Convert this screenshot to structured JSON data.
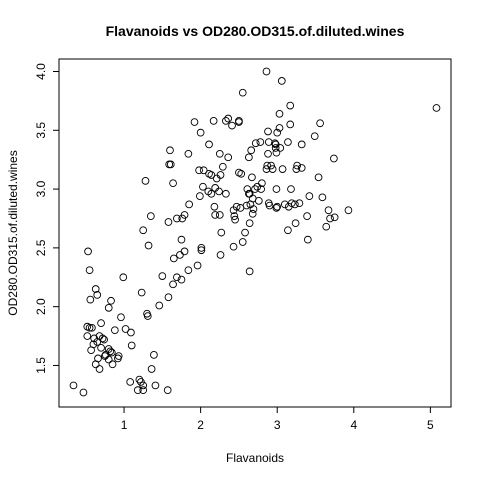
{
  "chart_data": {
    "type": "scatter",
    "title": "Flavanoids vs OD280.OD315.of.diluted.wines",
    "xlabel": "Flavanoids",
    "ylabel": "OD280.OD315.of.diluted.wines",
    "xlim": [
      0.34,
      5.08
    ],
    "ylim": [
      1.27,
      4.0
    ],
    "xticks": [
      1,
      2,
      3,
      4,
      5
    ],
    "xtick_labels": [
      "1",
      "2",
      "3",
      "4",
      "5"
    ],
    "yticks": [
      1.5,
      2.0,
      2.5,
      3.0,
      3.5,
      4.0
    ],
    "ytick_labels": [
      "1.5",
      "2.0",
      "2.5",
      "3.0",
      "3.5",
      "4.0"
    ],
    "grid": false,
    "marker": "open-circle",
    "points": [
      [
        0.34,
        1.33
      ],
      [
        0.47,
        1.27
      ],
      [
        0.52,
        1.75
      ],
      [
        0.52,
        1.83
      ],
      [
        0.55,
        1.82
      ],
      [
        0.53,
        2.47
      ],
      [
        0.55,
        2.31
      ],
      [
        0.56,
        2.06
      ],
      [
        0.57,
        1.63
      ],
      [
        0.58,
        1.82
      ],
      [
        0.6,
        1.68
      ],
      [
        0.61,
        1.73
      ],
      [
        0.63,
        1.51
      ],
      [
        0.63,
        2.15
      ],
      [
        0.65,
        2.1
      ],
      [
        0.65,
        1.7
      ],
      [
        0.66,
        1.56
      ],
      [
        0.68,
        1.75
      ],
      [
        0.68,
        1.47
      ],
      [
        0.7,
        1.65
      ],
      [
        0.7,
        1.86
      ],
      [
        0.72,
        1.73
      ],
      [
        0.74,
        1.72
      ],
      [
        0.75,
        1.58
      ],
      [
        0.76,
        1.59
      ],
      [
        0.8,
        1.55
      ],
      [
        0.8,
        1.64
      ],
      [
        0.8,
        1.99
      ],
      [
        0.82,
        1.62
      ],
      [
        0.83,
        2.05
      ],
      [
        0.84,
        1.61
      ],
      [
        0.85,
        1.51
      ],
      [
        0.88,
        1.8
      ],
      [
        0.92,
        1.56
      ],
      [
        0.93,
        1.58
      ],
      [
        0.96,
        1.91
      ],
      [
        0.99,
        2.25
      ],
      [
        1.02,
        1.81
      ],
      [
        1.08,
        1.36
      ],
      [
        1.1,
        1.67
      ],
      [
        1.09,
        1.78
      ],
      [
        1.18,
        1.29
      ],
      [
        1.2,
        1.38
      ],
      [
        1.22,
        1.36
      ],
      [
        1.25,
        1.29
      ],
      [
        1.23,
        2.12
      ],
      [
        1.25,
        1.33
      ],
      [
        1.25,
        2.65
      ],
      [
        1.28,
        3.07
      ],
      [
        1.3,
        1.94
      ],
      [
        1.31,
        1.92
      ],
      [
        1.32,
        2.52
      ],
      [
        1.35,
        2.77
      ],
      [
        1.36,
        1.47
      ],
      [
        1.39,
        1.59
      ],
      [
        1.41,
        1.33
      ],
      [
        1.46,
        2.01
      ],
      [
        1.5,
        2.26
      ],
      [
        1.57,
        1.29
      ],
      [
        1.58,
        2.08
      ],
      [
        1.58,
        2.72
      ],
      [
        1.59,
        3.21
      ],
      [
        1.6,
        3.33
      ],
      [
        1.61,
        3.21
      ],
      [
        1.64,
        2.19
      ],
      [
        1.64,
        3.05
      ],
      [
        1.65,
        2.41
      ],
      [
        1.69,
        2.75
      ],
      [
        1.69,
        2.25
      ],
      [
        1.73,
        2.44
      ],
      [
        1.75,
        2.23
      ],
      [
        1.75,
        2.57
      ],
      [
        1.76,
        2.75
      ],
      [
        1.79,
        2.78
      ],
      [
        1.79,
        2.47
      ],
      [
        1.84,
        3.3
      ],
      [
        1.84,
        2.31
      ],
      [
        1.85,
        2.87
      ],
      [
        1.92,
        3.57
      ],
      [
        1.96,
        2.35
      ],
      [
        1.98,
        3.16
      ],
      [
        1.99,
        2.94
      ],
      [
        2.0,
        3.48
      ],
      [
        2.01,
        2.5
      ],
      [
        2.01,
        2.48
      ],
      [
        2.03,
        3.02
      ],
      [
        2.04,
        3.16
      ],
      [
        2.1,
        2.98
      ],
      [
        2.11,
        3.38
      ],
      [
        2.11,
        3.13
      ],
      [
        2.14,
        2.96
      ],
      [
        2.14,
        3.12
      ],
      [
        2.17,
        3.58
      ],
      [
        2.18,
        2.85
      ],
      [
        2.19,
        3.01
      ],
      [
        2.19,
        2.78
      ],
      [
        2.21,
        3.09
      ],
      [
        2.24,
        2.98
      ],
      [
        2.25,
        3.3
      ],
      [
        2.25,
        2.78
      ],
      [
        2.26,
        2.44
      ],
      [
        2.26,
        3.12
      ],
      [
        2.27,
        2.63
      ],
      [
        2.29,
        3.19
      ],
      [
        2.33,
        3.58
      ],
      [
        2.33,
        2.96
      ],
      [
        2.36,
        3.6
      ],
      [
        2.36,
        3.27
      ],
      [
        2.41,
        3.54
      ],
      [
        2.43,
        2.51
      ],
      [
        2.43,
        2.82
      ],
      [
        2.44,
        2.77
      ],
      [
        2.45,
        2.74
      ],
      [
        2.47,
        2.85
      ],
      [
        2.5,
        3.57
      ],
      [
        2.5,
        3.58
      ],
      [
        2.5,
        3.14
      ],
      [
        2.52,
        2.84
      ],
      [
        2.53,
        3.13
      ],
      [
        2.55,
        2.55
      ],
      [
        2.55,
        3.82
      ],
      [
        2.58,
        2.63
      ],
      [
        2.6,
        2.86
      ],
      [
        2.61,
        3.0
      ],
      [
        2.63,
        2.96
      ],
      [
        2.63,
        3.27
      ],
      [
        2.64,
        2.96
      ],
      [
        2.64,
        2.3
      ],
      [
        2.64,
        2.71
      ],
      [
        2.65,
        2.87
      ],
      [
        2.66,
        3.33
      ],
      [
        2.67,
        3.1
      ],
      [
        2.68,
        2.79
      ],
      [
        2.68,
        2.92
      ],
      [
        2.69,
        2.83
      ],
      [
        2.71,
        3.0
      ],
      [
        2.72,
        3.39
      ],
      [
        2.74,
        3.02
      ],
      [
        2.76,
        2.9
      ],
      [
        2.78,
        3.4
      ],
      [
        2.79,
        3.0
      ],
      [
        2.8,
        3.05
      ],
      [
        2.86,
        4.0
      ],
      [
        2.86,
        3.17
      ],
      [
        2.87,
        3.2
      ],
      [
        2.88,
        3.49
      ],
      [
        2.88,
        3.3
      ],
      [
        2.89,
        2.88
      ],
      [
        2.89,
        3.4
      ],
      [
        2.9,
        2.86
      ],
      [
        2.92,
        3.2
      ],
      [
        2.94,
        3.17
      ],
      [
        2.97,
        3.39
      ],
      [
        2.98,
        3.38
      ],
      [
        2.98,
        3.35
      ],
      [
        2.99,
        3.0
      ],
      [
        2.99,
        3.31
      ],
      [
        2.99,
        2.84
      ],
      [
        3.0,
        2.85
      ],
      [
        3.0,
        3.48
      ],
      [
        3.03,
        3.64
      ],
      [
        3.03,
        3.52
      ],
      [
        3.04,
        3.35
      ],
      [
        3.06,
        3.92
      ],
      [
        3.07,
        3.17
      ],
      [
        3.1,
        2.87
      ],
      [
        3.14,
        2.65
      ],
      [
        3.14,
        3.4
      ],
      [
        3.15,
        2.85
      ],
      [
        3.17,
        3.71
      ],
      [
        3.17,
        3.55
      ],
      [
        3.18,
        3.0
      ],
      [
        3.19,
        2.88
      ],
      [
        3.23,
        2.87
      ],
      [
        3.24,
        2.71
      ],
      [
        3.25,
        3.17
      ],
      [
        3.26,
        3.2
      ],
      [
        3.29,
        2.88
      ],
      [
        3.32,
        3.18
      ],
      [
        3.32,
        3.38
      ],
      [
        3.39,
        2.77
      ],
      [
        3.4,
        2.57
      ],
      [
        3.42,
        2.94
      ],
      [
        3.49,
        3.45
      ],
      [
        3.54,
        3.1
      ],
      [
        3.56,
        3.56
      ],
      [
        3.59,
        2.93
      ],
      [
        3.64,
        2.68
      ],
      [
        3.67,
        2.82
      ],
      [
        3.69,
        2.75
      ],
      [
        3.74,
        3.26
      ],
      [
        3.75,
        2.76
      ],
      [
        3.93,
        2.82
      ],
      [
        5.08,
        3.69
      ]
    ]
  }
}
